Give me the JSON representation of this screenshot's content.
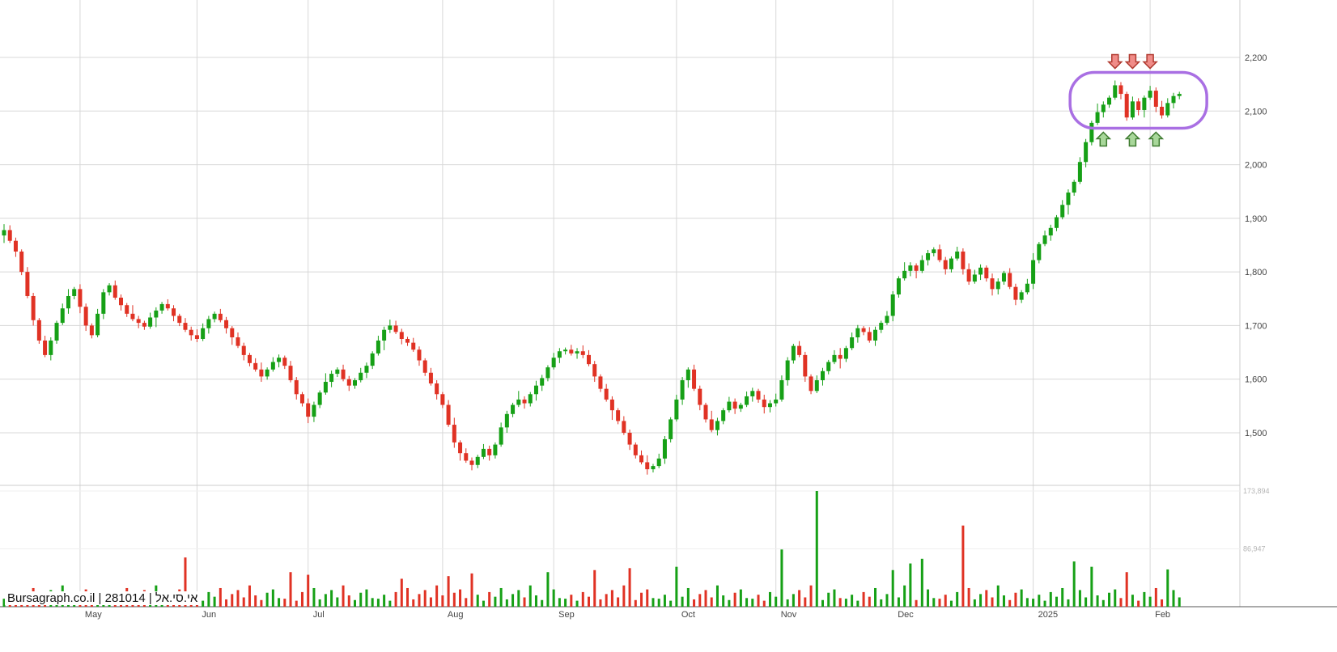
{
  "footer": {
    "label": "Bursagraph.co.il | 281014 | אי.סי.אל"
  },
  "chart_data": {
    "type": "candlestick",
    "title": "",
    "xlabel": "",
    "ylabel": "",
    "ylim": [
      1400,
      2270
    ],
    "grid": true,
    "y_axis": {
      "ticks": [
        {
          "label": "2,200",
          "value": 2200
        },
        {
          "label": "2,100",
          "value": 2100
        },
        {
          "label": "2,000",
          "value": 2000
        },
        {
          "label": "1,900",
          "value": 1900
        },
        {
          "label": "1,800",
          "value": 1800
        },
        {
          "label": "1,700",
          "value": 1700
        },
        {
          "label": "1,600",
          "value": 1600
        },
        {
          "label": "1,500",
          "value": 1500
        }
      ]
    },
    "x_axis": {
      "months": [
        {
          "label": "May",
          "index": 13
        },
        {
          "label": "Jun",
          "index": 33
        },
        {
          "label": "Jul",
          "index": 52
        },
        {
          "label": "Aug",
          "index": 75
        },
        {
          "label": "Sep",
          "index": 94
        },
        {
          "label": "Oct",
          "index": 115
        },
        {
          "label": "Nov",
          "index": 132
        },
        {
          "label": "Dec",
          "index": 152
        },
        {
          "label": "2025",
          "index": 176
        },
        {
          "label": "Feb",
          "index": 196
        }
      ]
    },
    "volume_axis": {
      "ticks": [
        {
          "label": "173,894",
          "value": 173894
        },
        {
          "label": "86,947",
          "value": 86947
        }
      ],
      "max": 173894
    },
    "first_open": 1868,
    "closes": [
      1878,
      1858,
      1838,
      1800,
      1755,
      1710,
      1672,
      1645,
      1672,
      1705,
      1732,
      1755,
      1768,
      1735,
      1700,
      1682,
      1722,
      1762,
      1775,
      1752,
      1738,
      1722,
      1712,
      1705,
      1698,
      1715,
      1728,
      1740,
      1732,
      1718,
      1705,
      1692,
      1682,
      1675,
      1695,
      1712,
      1722,
      1710,
      1695,
      1678,
      1662,
      1645,
      1630,
      1618,
      1605,
      1618,
      1632,
      1640,
      1625,
      1598,
      1572,
      1555,
      1530,
      1552,
      1575,
      1595,
      1610,
      1618,
      1600,
      1588,
      1598,
      1612,
      1625,
      1648,
      1672,
      1692,
      1700,
      1688,
      1675,
      1668,
      1655,
      1635,
      1612,
      1592,
      1572,
      1552,
      1515,
      1482,
      1462,
      1448,
      1440,
      1455,
      1470,
      1458,
      1478,
      1510,
      1535,
      1552,
      1562,
      1555,
      1572,
      1588,
      1602,
      1622,
      1640,
      1652,
      1655,
      1648,
      1652,
      1645,
      1628,
      1605,
      1582,
      1562,
      1542,
      1522,
      1500,
      1478,
      1458,
      1445,
      1432,
      1438,
      1452,
      1488,
      1525,
      1562,
      1598,
      1618,
      1582,
      1552,
      1525,
      1505,
      1522,
      1542,
      1558,
      1545,
      1552,
      1568,
      1578,
      1562,
      1548,
      1555,
      1562,
      1598,
      1635,
      1662,
      1645,
      1605,
      1578,
      1598,
      1615,
      1632,
      1645,
      1638,
      1658,
      1678,
      1695,
      1688,
      1672,
      1692,
      1705,
      1718,
      1758,
      1788,
      1802,
      1812,
      1802,
      1822,
      1835,
      1842,
      1822,
      1805,
      1825,
      1838,
      1805,
      1782,
      1795,
      1808,
      1788,
      1768,
      1782,
      1798,
      1772,
      1748,
      1762,
      1778,
      1822,
      1852,
      1868,
      1882,
      1902,
      1925,
      1948,
      1968,
      2005,
      2042,
      2078,
      2098,
      2112,
      2125,
      2148,
      2132,
      2088,
      2118,
      2102,
      2125,
      2138,
      2108,
      2092,
      2115,
      2128,
      2132
    ],
    "volumes": [
      12000,
      18000,
      9000,
      22000,
      15000,
      28000,
      11000,
      19000,
      25000,
      14000,
      32000,
      17000,
      10000,
      21000,
      26000,
      13000,
      12000,
      18000,
      9000,
      22000,
      15000,
      28000,
      11000,
      19000,
      25000,
      14000,
      32000,
      17000,
      10000,
      21000,
      26000,
      74000,
      12000,
      18000,
      9000,
      22000,
      15000,
      28000,
      11000,
      19000,
      25000,
      14000,
      32000,
      17000,
      10000,
      21000,
      26000,
      13000,
      12000,
      52000,
      9000,
      22000,
      48000,
      28000,
      11000,
      19000,
      25000,
      14000,
      32000,
      17000,
      10000,
      21000,
      26000,
      13000,
      12000,
      18000,
      9000,
      22000,
      42000,
      28000,
      11000,
      19000,
      25000,
      14000,
      32000,
      17000,
      46000,
      21000,
      26000,
      13000,
      50000,
      18000,
      9000,
      22000,
      15000,
      28000,
      11000,
      19000,
      25000,
      14000,
      32000,
      17000,
      10000,
      52000,
      26000,
      13000,
      12000,
      18000,
      9000,
      22000,
      15000,
      55000,
      11000,
      19000,
      25000,
      14000,
      32000,
      58000,
      10000,
      21000,
      26000,
      13000,
      12000,
      18000,
      9000,
      60000,
      15000,
      28000,
      11000,
      19000,
      25000,
      14000,
      32000,
      17000,
      10000,
      21000,
      26000,
      13000,
      12000,
      18000,
      9000,
      22000,
      15000,
      86000,
      11000,
      19000,
      25000,
      14000,
      32000,
      173894,
      10000,
      21000,
      26000,
      13000,
      12000,
      18000,
      9000,
      22000,
      15000,
      28000,
      11000,
      19000,
      55000,
      14000,
      32000,
      65000,
      10000,
      72000,
      26000,
      13000,
      12000,
      18000,
      9000,
      22000,
      122000,
      28000,
      11000,
      19000,
      25000,
      14000,
      32000,
      17000,
      10000,
      21000,
      26000,
      13000,
      12000,
      18000,
      9000,
      22000,
      15000,
      28000,
      11000,
      68000,
      25000,
      14000,
      60000,
      17000,
      10000,
      21000,
      26000,
      13000,
      52000,
      18000,
      9000,
      22000,
      15000,
      28000,
      11000,
      56000,
      25000,
      14000
    ],
    "annotations": {
      "box": {
        "start_index": 183,
        "end_index": 205,
        "price_top": 2172,
        "price_bottom": 2068,
        "color": "#a96fe3"
      },
      "arrows": [
        {
          "dir": "down",
          "index": 190
        },
        {
          "dir": "down",
          "index": 193
        },
        {
          "dir": "down",
          "index": 196
        },
        {
          "dir": "up",
          "index": 188
        },
        {
          "dir": "up",
          "index": 193
        },
        {
          "dir": "up",
          "index": 197
        }
      ]
    },
    "colors": {
      "up": "#16a016",
      "down": "#e03224",
      "grid": "#d8d8d8",
      "axis_text": "#444444",
      "volume_label": "#b5b5b5",
      "separator": "#cccccc",
      "axis_line": "#555555",
      "arrow_down_fill": "#f08c88",
      "arrow_down_stroke": "#b03a30",
      "arrow_up_fill": "#a8d79a",
      "arrow_up_stroke": "#3d7a2f"
    }
  }
}
